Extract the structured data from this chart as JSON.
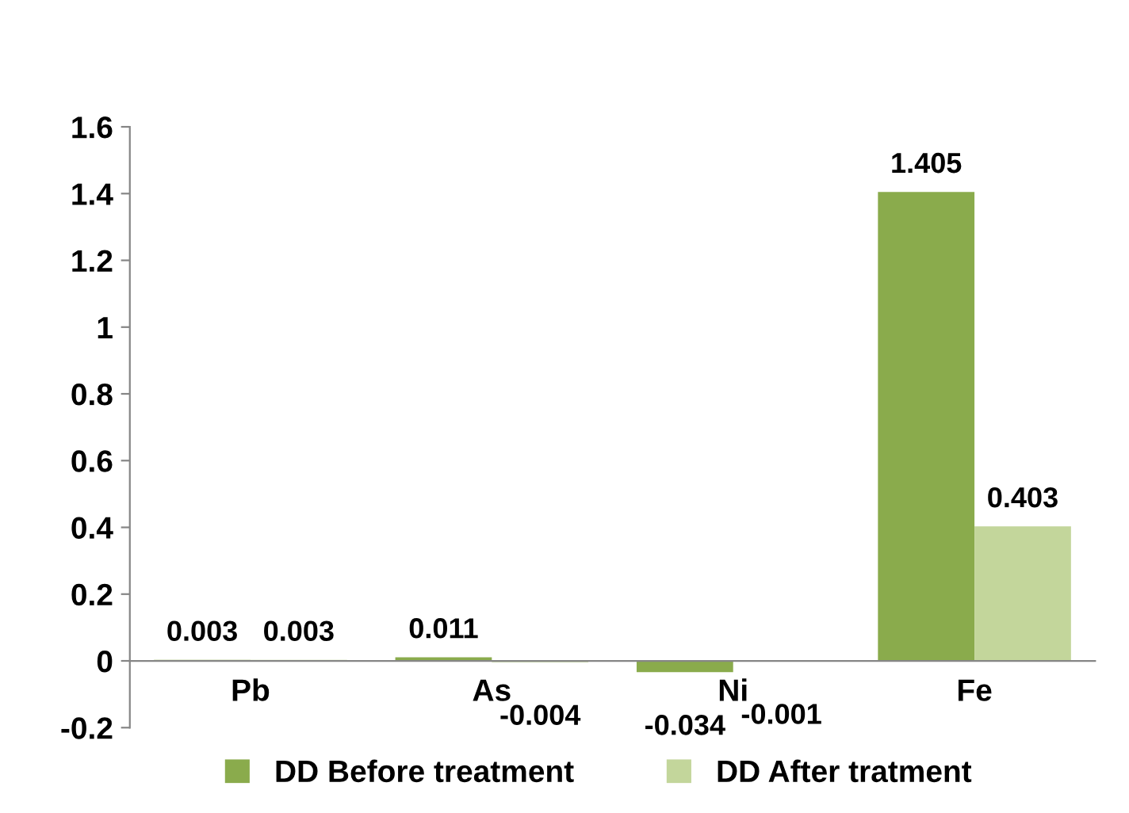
{
  "chart_data": {
    "type": "bar",
    "categories": [
      "Pb",
      "As",
      "Ni",
      "Fe"
    ],
    "series": [
      {
        "name": "DD Before treatment",
        "color": "#8aab4c",
        "values": [
          0.003,
          0.011,
          -0.034,
          1.405
        ]
      },
      {
        "name": "DD After tratment",
        "color": "#c3d69b",
        "values": [
          0.003,
          -0.004,
          -0.001,
          0.403
        ]
      }
    ],
    "ylim": [
      -0.2,
      1.6
    ],
    "yticks": [
      -0.2,
      0,
      0.2,
      0.4,
      0.6,
      0.8,
      1,
      1.2,
      1.4,
      1.6
    ],
    "data_labels": true,
    "grid": false,
    "legend": "bottom"
  }
}
